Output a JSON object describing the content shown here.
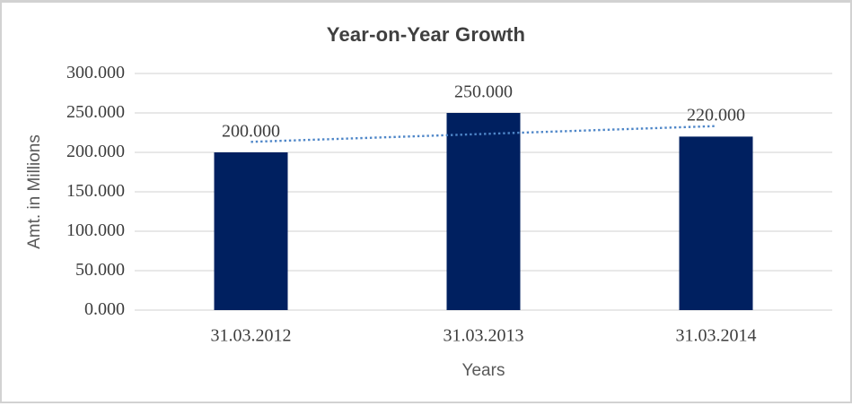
{
  "frame": {
    "background": "#ffffff",
    "border_color": "#d2d2d2"
  },
  "chart_data": {
    "type": "bar",
    "title": "Year-on-Year Growth",
    "xlabel": "Years",
    "ylabel": "Amt. in Millions",
    "categories": [
      "31.03.2012",
      "31.03.2013",
      "31.03.2014"
    ],
    "values": [
      200,
      250,
      220
    ],
    "value_labels": [
      "200.000",
      "250.000",
      "220.000"
    ],
    "ylim": [
      0,
      300
    ],
    "ytick_step": 50,
    "ytick_labels": [
      "0.000",
      "50.000",
      "100.000",
      "150.000",
      "200.000",
      "250.000",
      "300.000"
    ],
    "grid": true,
    "legend": "none",
    "bar_color": "#002060",
    "gridline_color": "#d9d9d9",
    "trendline": {
      "type": "linear",
      "style": "dotted",
      "color": "#4e86c8"
    },
    "title_color": "#3f3f3f",
    "tick_label_color": "#3d3d3d",
    "axis_title_color": "#595959"
  }
}
